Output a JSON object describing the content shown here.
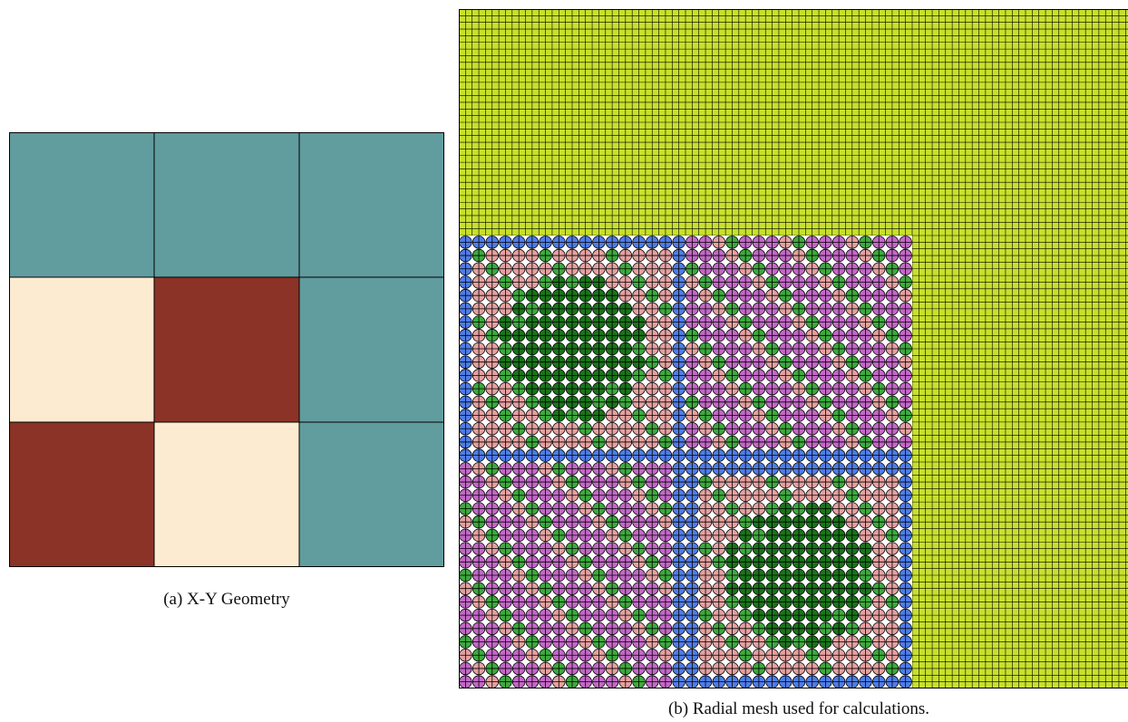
{
  "figure": {
    "panel_a": {
      "caption": "(a) X-Y Geometry",
      "grid": {
        "rows": 3,
        "cols": 3,
        "cells": [
          [
            "moderator",
            "moderator",
            "moderator"
          ],
          [
            "uo2",
            "mox",
            "moderator"
          ],
          [
            "mox",
            "uo2",
            "moderator"
          ]
        ]
      }
    },
    "panel_b": {
      "caption": "(b) Radial mesh used for calculations.",
      "fine_mesh_cells": 102,
      "pin_region_cells": 34,
      "pin_region_extent": "bottom-left"
    },
    "colors": {
      "moderator": "#619c9e",
      "uo2": "#fdebd1",
      "mox": "#8b3326",
      "mesh_water": "#c7e02c",
      "pin_blue": "#4f7de8",
      "pin_pink": "#e6a0a0",
      "pin_magenta": "#c468c8",
      "pin_green_light": "#3daa3d",
      "pin_green_dark": "#197519",
      "line": "#000000"
    }
  }
}
